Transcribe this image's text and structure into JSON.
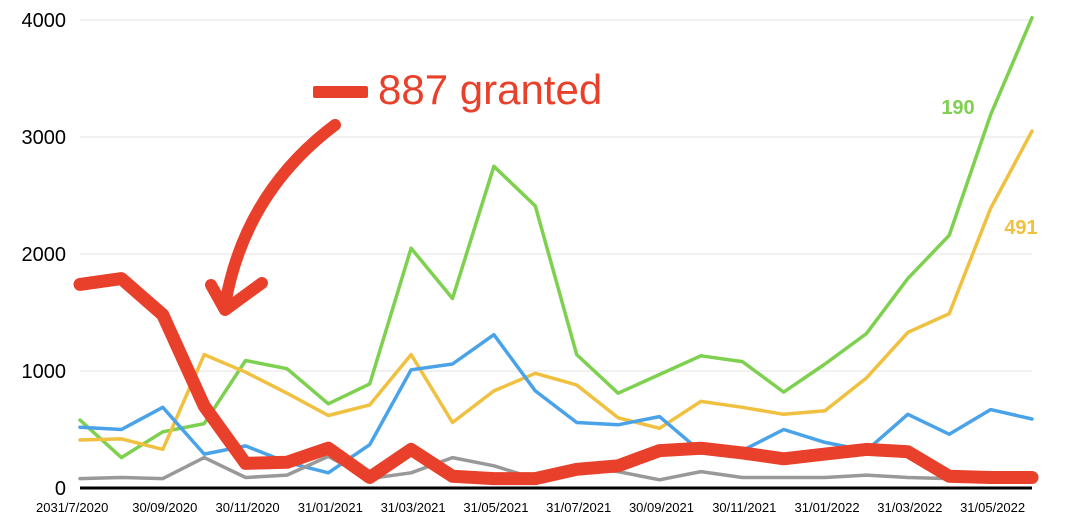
{
  "chart_data": {
    "type": "line",
    "x": [
      "2031/7/2020",
      "31/08/2020",
      "30/09/2020",
      "31/10/2020",
      "30/11/2020",
      "31/12/2020",
      "31/01/2021",
      "28/02/2021",
      "31/03/2021",
      "30/04/2021",
      "31/05/2021",
      "30/06/2021",
      "31/07/2021",
      "31/08/2021",
      "30/09/2021",
      "31/10/2021",
      "30/11/2021",
      "31/12/2021",
      "31/01/2022",
      "28/02/2022",
      "31/03/2022",
      "30/04/2022",
      "31/05/2022",
      "30/06/2022"
    ],
    "x_tick_labels": [
      "2031/7/2020",
      "30/09/2020",
      "30/11/2020",
      "31/01/2021",
      "31/03/2021",
      "31/05/2021",
      "31/07/2021",
      "30/09/2021",
      "30/11/2021",
      "31/01/2022",
      "31/03/2022",
      "31/05/2022"
    ],
    "ylim": [
      0,
      4000
    ],
    "y_ticks": [
      "0",
      "1000",
      "2000",
      "3000",
      "4000"
    ],
    "grid": true,
    "series": [
      {
        "color": "#7ed04f",
        "end_label": "190",
        "values": [
          580,
          260,
          480,
          550,
          1090,
          1020,
          720,
          890,
          2050,
          1620,
          2750,
          2410,
          1140,
          810,
          970,
          1130,
          1080,
          820,
          1060,
          1320,
          1790,
          2160,
          3190,
          4020
        ]
      },
      {
        "color": "#f0c040",
        "end_label": "491",
        "values": [
          410,
          420,
          330,
          1140,
          990,
          810,
          620,
          710,
          1140,
          560,
          830,
          980,
          880,
          600,
          510,
          740,
          690,
          630,
          660,
          940,
          1330,
          1490,
          2390,
          3050
        ]
      },
      {
        "color": "#4aa3e8",
        "values": [
          520,
          500,
          690,
          290,
          360,
          220,
          130,
          370,
          1010,
          1060,
          1310,
          830,
          560,
          540,
          610,
          310,
          320,
          500,
          390,
          320,
          630,
          460,
          670,
          590
        ]
      },
      {
        "color": "#999999",
        "values": [
          80,
          90,
          80,
          260,
          90,
          110,
          270,
          80,
          130,
          260,
          190,
          80,
          170,
          140,
          70,
          140,
          90,
          90,
          90,
          110,
          90,
          80,
          90,
          80
        ]
      },
      {
        "color": "#e8402a",
        "highlight": true,
        "values": [
          1740,
          1790,
          1480,
          700,
          210,
          220,
          340,
          90,
          330,
          100,
          80,
          80,
          160,
          190,
          320,
          340,
          300,
          250,
          290,
          330,
          310,
          100,
          90,
          90
        ]
      }
    ],
    "annotation": {
      "text": "887 granted",
      "color": "#e8402a"
    }
  }
}
